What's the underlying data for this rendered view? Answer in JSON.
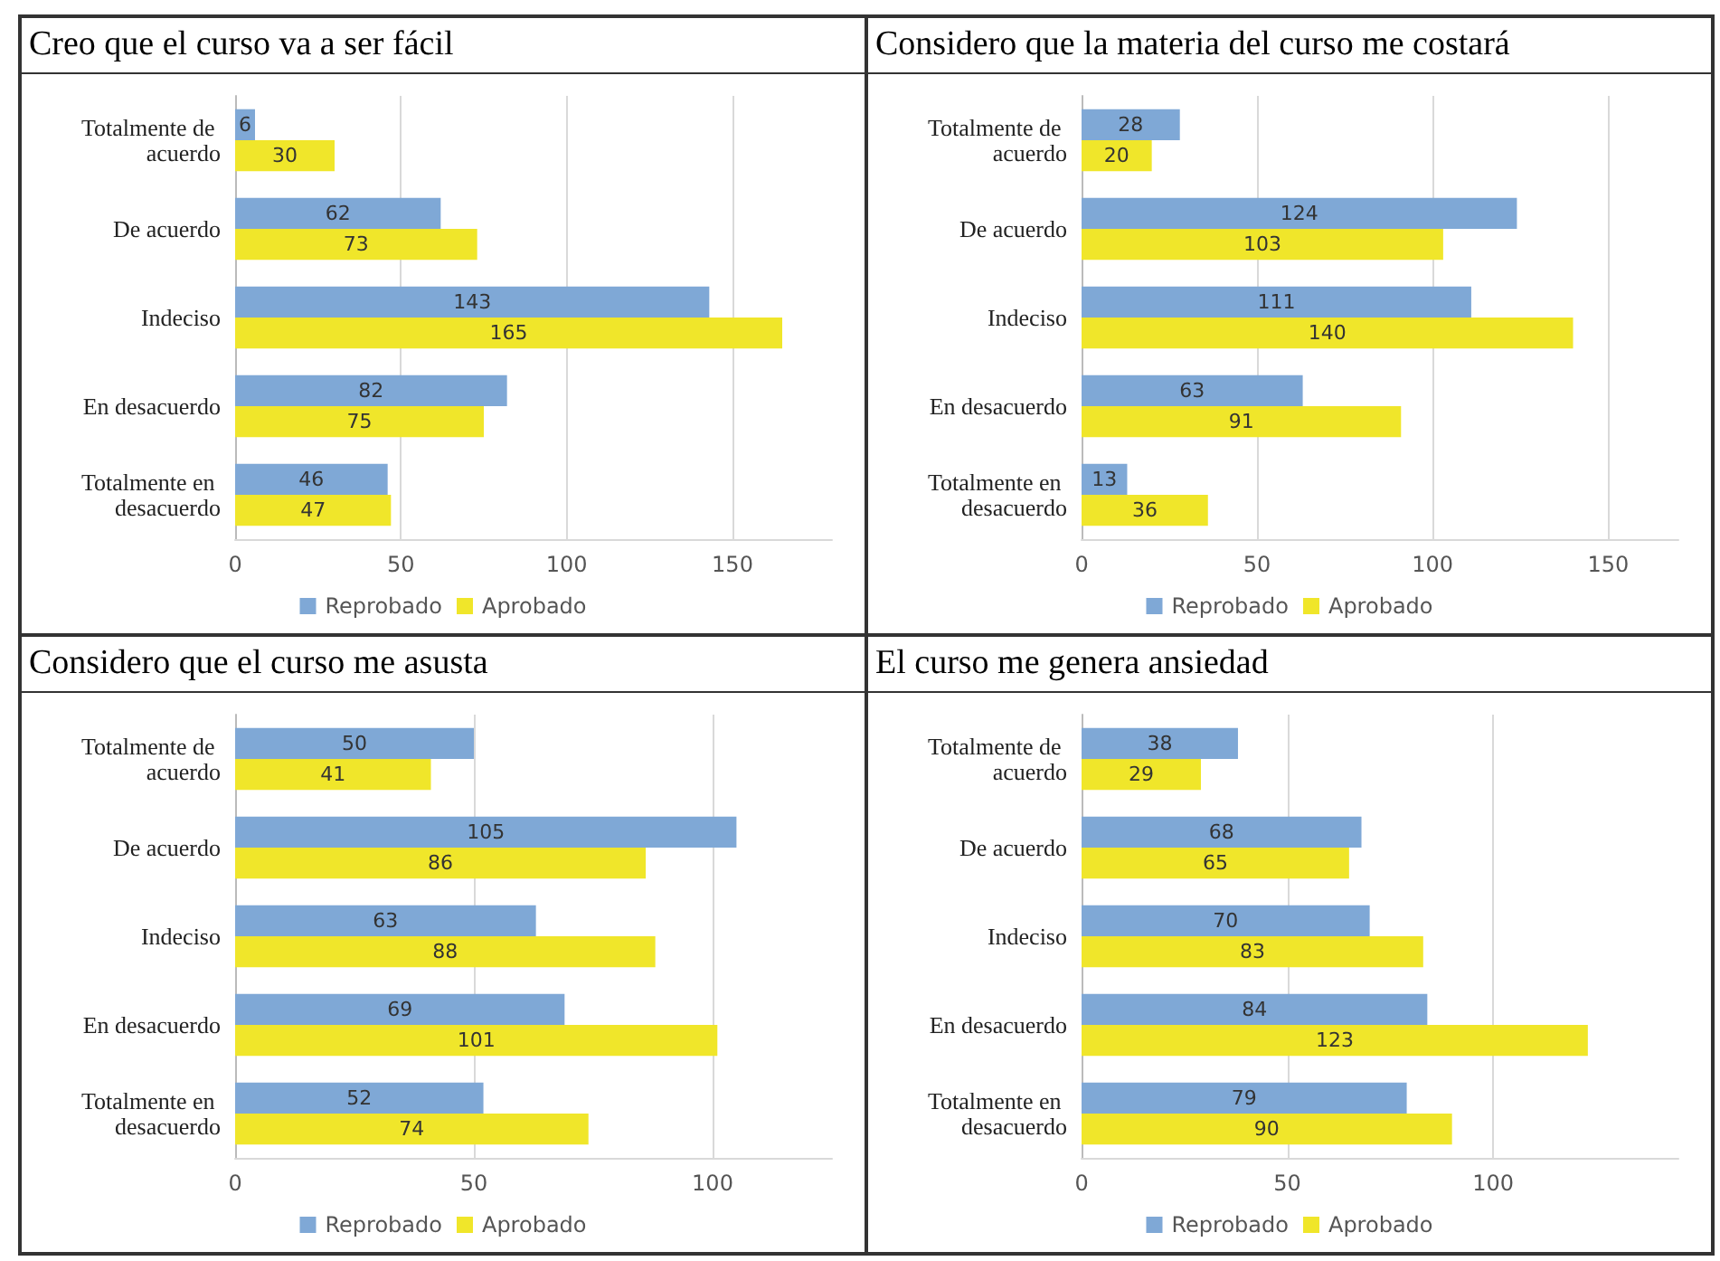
{
  "chart_data": [
    {
      "type": "bar",
      "orientation": "horizontal",
      "title": "Creo que el curso va a ser fácil",
      "categories": [
        "Totalmente de acuerdo",
        "De acuerdo",
        "Indeciso",
        "En desacuerdo",
        "Totalmente en desacuerdo"
      ],
      "series": [
        {
          "name": "Reprobado",
          "color": "#7fa8d6",
          "values": [
            6,
            62,
            143,
            82,
            46
          ]
        },
        {
          "name": "Aprobado",
          "color": "#f0e62a",
          "values": [
            30,
            73,
            165,
            75,
            47
          ]
        }
      ],
      "xlim": [
        0,
        180
      ],
      "xticks": [
        0,
        50,
        100,
        150
      ],
      "grid": "x",
      "legend": "bottom",
      "data_labels": true
    },
    {
      "type": "bar",
      "orientation": "horizontal",
      "title": "Considero que la materia del curso me costará",
      "categories": [
        "Totalmente de acuerdo",
        "De acuerdo",
        "Indeciso",
        "En desacuerdo",
        "Totalmente en desacuerdo"
      ],
      "series": [
        {
          "name": "Reprobado",
          "color": "#7fa8d6",
          "values": [
            28,
            124,
            111,
            63,
            13
          ]
        },
        {
          "name": "Aprobado",
          "color": "#f0e62a",
          "values": [
            20,
            103,
            140,
            91,
            36
          ]
        }
      ],
      "xlim": [
        0,
        170
      ],
      "xticks": [
        0,
        50,
        100,
        150
      ],
      "grid": "x",
      "legend": "bottom",
      "data_labels": true
    },
    {
      "type": "bar",
      "orientation": "horizontal",
      "title": "Considero que el curso me asusta",
      "categories": [
        "Totalmente de acuerdo",
        "De acuerdo",
        "Indeciso",
        "En desacuerdo",
        "Totalmente en desacuerdo"
      ],
      "series": [
        {
          "name": "Reprobado",
          "color": "#7fa8d6",
          "values": [
            50,
            105,
            63,
            69,
            52
          ]
        },
        {
          "name": "Aprobado",
          "color": "#f0e62a",
          "values": [
            41,
            86,
            88,
            101,
            74
          ]
        }
      ],
      "xlim": [
        0,
        125
      ],
      "xticks": [
        0,
        50,
        100
      ],
      "grid": "x",
      "legend": "bottom",
      "data_labels": true
    },
    {
      "type": "bar",
      "orientation": "horizontal",
      "title": "El curso me genera ansiedad",
      "categories": [
        "Totalmente de acuerdo",
        "De acuerdo",
        "Indeciso",
        "En desacuerdo",
        "Totalmente en desacuerdo"
      ],
      "series": [
        {
          "name": "Reprobado",
          "color": "#7fa8d6",
          "values": [
            38,
            68,
            70,
            84,
            79
          ]
        },
        {
          "name": "Aprobado",
          "color": "#f0e62a",
          "values": [
            29,
            65,
            83,
            123,
            90
          ]
        }
      ],
      "xlim": [
        0,
        145
      ],
      "xticks": [
        0,
        50,
        100
      ],
      "grid": "x",
      "legend": "bottom",
      "data_labels": true
    }
  ]
}
